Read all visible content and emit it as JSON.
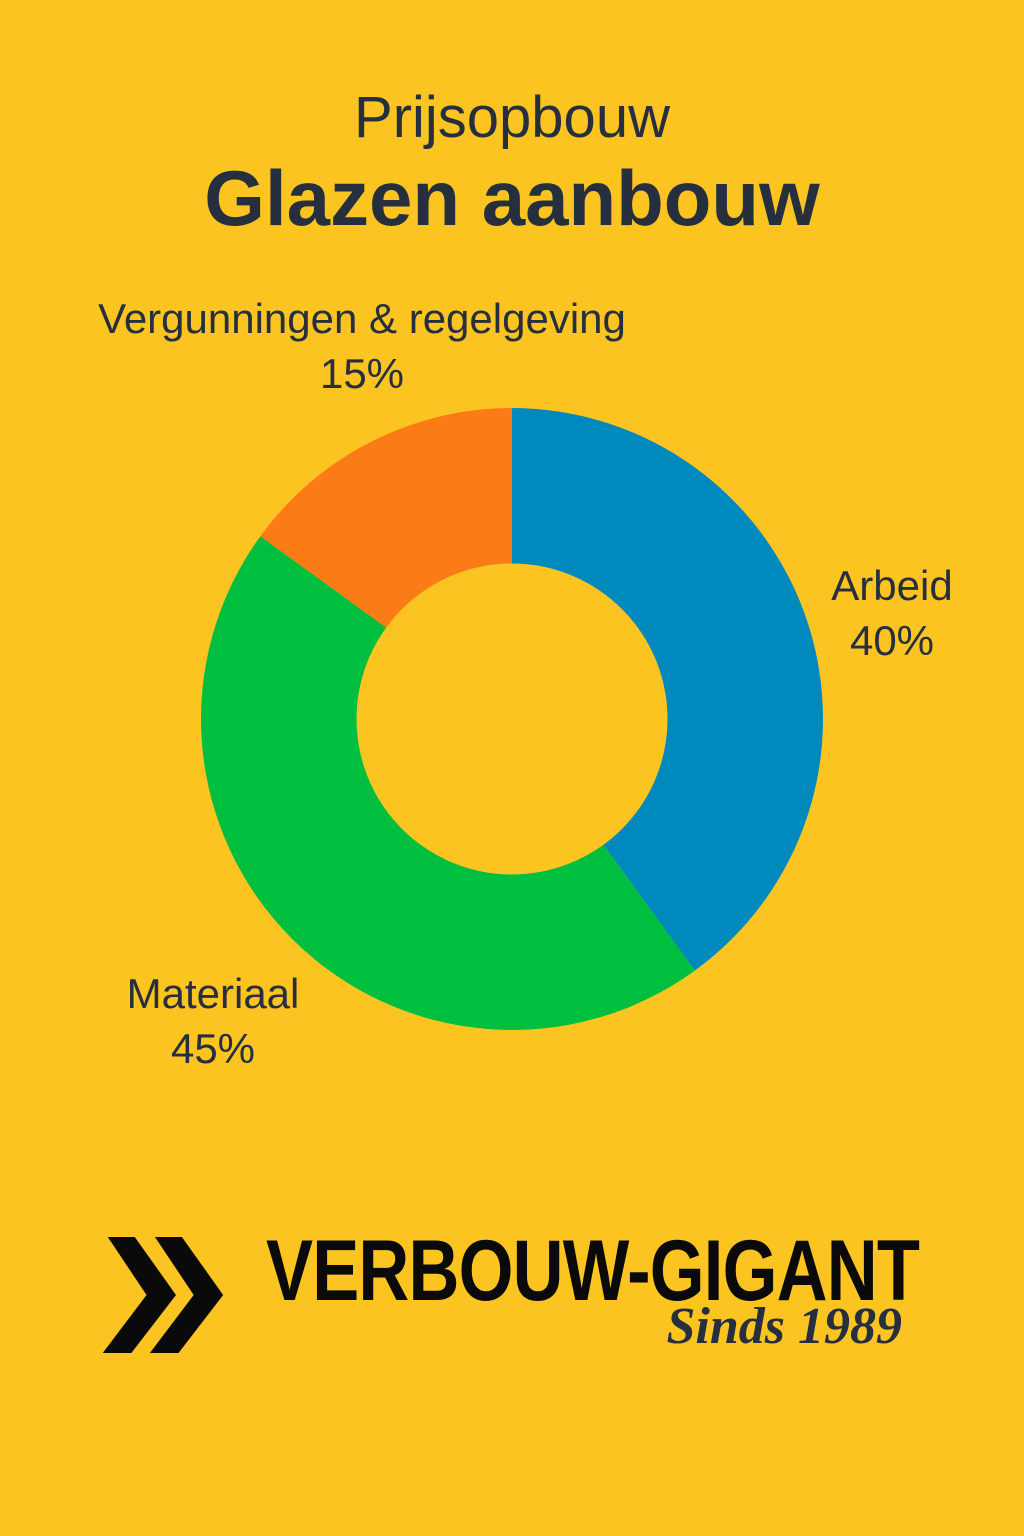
{
  "page": {
    "background_color": "#FCC421",
    "text_color": "#252F3E",
    "logo_color": "#0A0A0A"
  },
  "header": {
    "subtitle": "Prijsopbouw",
    "title": "Glazen aanbouw"
  },
  "chart_data": {
    "type": "pie",
    "variant": "donut",
    "title": "Prijsopbouw Glazen aanbouw",
    "start_angle_deg": 0,
    "direction": "clockwise",
    "inner_radius_ratio": 0.5,
    "legend_position": "outside-labels",
    "slices": [
      {
        "label": "Arbeid",
        "value_pct": 40,
        "color": "#0089BD"
      },
      {
        "label": "Materiaal",
        "value_pct": 45,
        "color": "#00BF3E"
      },
      {
        "label": "Vergunningen & regelgeving",
        "value_pct": 15,
        "color": "#FB7B17"
      }
    ]
  },
  "labels": {
    "vergunningen": {
      "name": "Vergunningen & regelgeving",
      "pct": "15%"
    },
    "arbeid": {
      "name": "Arbeid",
      "pct": "40%"
    },
    "materiaal": {
      "name": "Materiaal",
      "pct": "45%"
    }
  },
  "footer": {
    "brand": "VERBOUW-GIGANT",
    "tagline": "Sinds 1989"
  }
}
